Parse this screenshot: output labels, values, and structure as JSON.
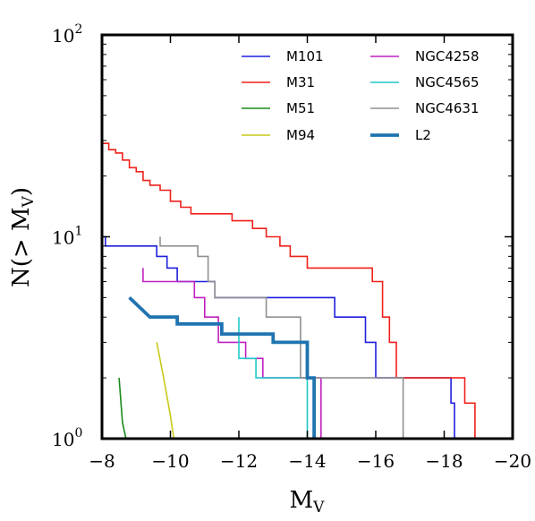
{
  "chart_data": {
    "type": "line",
    "title": "",
    "xlabel": "M",
    "xlabel_sub": "V",
    "ylabel": "N(> M",
    "ylabel_sub": "V",
    "ylabel_end": ")",
    "xlim": [
      -8,
      -20
    ],
    "ylim": [
      1,
      100
    ],
    "yscale": "log",
    "x_ticks": [
      {
        "value": -8,
        "label": "−8"
      },
      {
        "value": -10,
        "label": "−10"
      },
      {
        "value": -12,
        "label": "−12"
      },
      {
        "value": -14,
        "label": "−14"
      },
      {
        "value": -16,
        "label": "−16"
      },
      {
        "value": -18,
        "label": "−18"
      },
      {
        "value": -20,
        "label": "−20"
      }
    ],
    "y_ticks": [
      {
        "value": 1,
        "base": "10",
        "exp": "0"
      },
      {
        "value": 10,
        "base": "10",
        "exp": "1"
      },
      {
        "value": 100,
        "base": "10",
        "exp": "2"
      }
    ],
    "grid": false,
    "legend_position": "top-right",
    "series": [
      {
        "name": "M101",
        "color": "#1f1fdd",
        "width": 1.6,
        "points": [
          [
            -8,
            10
          ],
          [
            -8.1,
            10
          ],
          [
            -8.1,
            9
          ],
          [
            -9.6,
            9
          ],
          [
            -9.6,
            8
          ],
          [
            -9.9,
            8
          ],
          [
            -9.9,
            7
          ],
          [
            -10.2,
            7
          ],
          [
            -10.2,
            6
          ],
          [
            -11.3,
            6
          ],
          [
            -11.3,
            5
          ],
          [
            -14.8,
            5
          ],
          [
            -14.8,
            4
          ],
          [
            -15.7,
            4
          ],
          [
            -15.7,
            3
          ],
          [
            -16.0,
            3
          ],
          [
            -16.0,
            2
          ],
          [
            -18.2,
            2
          ],
          [
            -18.2,
            1.5
          ],
          [
            -18.3,
            1.5
          ],
          [
            -18.3,
            1
          ]
        ]
      },
      {
        "name": "M31",
        "color": "#f0201a",
        "width": 1.6,
        "points": [
          [
            -8,
            29
          ],
          [
            -8.2,
            29
          ],
          [
            -8.2,
            27
          ],
          [
            -8.4,
            27
          ],
          [
            -8.4,
            26
          ],
          [
            -8.6,
            26
          ],
          [
            -8.6,
            24
          ],
          [
            -8.8,
            24
          ],
          [
            -8.8,
            22
          ],
          [
            -9.0,
            22
          ],
          [
            -9.0,
            21
          ],
          [
            -9.2,
            21
          ],
          [
            -9.2,
            19
          ],
          [
            -9.4,
            19
          ],
          [
            -9.4,
            18
          ],
          [
            -9.7,
            18
          ],
          [
            -9.7,
            17
          ],
          [
            -10.0,
            17
          ],
          [
            -10.0,
            15
          ],
          [
            -10.3,
            15
          ],
          [
            -10.3,
            14
          ],
          [
            -10.6,
            14
          ],
          [
            -10.6,
            13
          ],
          [
            -11.8,
            13
          ],
          [
            -11.8,
            12
          ],
          [
            -12.4,
            12
          ],
          [
            -12.4,
            11
          ],
          [
            -12.8,
            11
          ],
          [
            -12.8,
            10
          ],
          [
            -13.2,
            10
          ],
          [
            -13.2,
            9
          ],
          [
            -13.5,
            9
          ],
          [
            -13.5,
            8
          ],
          [
            -14.0,
            8
          ],
          [
            -14.0,
            7
          ],
          [
            -15.9,
            7
          ],
          [
            -15.9,
            6
          ],
          [
            -16.2,
            6
          ],
          [
            -16.2,
            4
          ],
          [
            -16.4,
            4
          ],
          [
            -16.4,
            3
          ],
          [
            -16.6,
            3
          ],
          [
            -16.6,
            2
          ],
          [
            -18.6,
            2
          ],
          [
            -18.6,
            1.5
          ],
          [
            -18.9,
            1.5
          ],
          [
            -18.9,
            1
          ]
        ]
      },
      {
        "name": "M51",
        "color": "#1a8a1a",
        "width": 1.6,
        "points": [
          [
            -8.5,
            2
          ],
          [
            -8.6,
            1.2
          ],
          [
            -8.7,
            1
          ]
        ]
      },
      {
        "name": "M94",
        "color": "#c8c81a",
        "width": 1.6,
        "points": [
          [
            -9.6,
            3
          ],
          [
            -9.8,
            2
          ],
          [
            -10.0,
            1.3
          ],
          [
            -10.1,
            1
          ]
        ]
      },
      {
        "name": "NGC4258",
        "color": "#c020c0",
        "width": 1.6,
        "points": [
          [
            -9.2,
            7
          ],
          [
            -9.2,
            6
          ],
          [
            -10.7,
            6
          ],
          [
            -10.7,
            5
          ],
          [
            -11.0,
            5
          ],
          [
            -11.0,
            4
          ],
          [
            -11.4,
            4
          ],
          [
            -11.4,
            3
          ],
          [
            -12.2,
            3
          ],
          [
            -12.2,
            2.5
          ],
          [
            -12.7,
            2.5
          ],
          [
            -12.7,
            2
          ],
          [
            -14.4,
            2
          ],
          [
            -14.4,
            1
          ]
        ]
      },
      {
        "name": "NGC4565",
        "color": "#20c8c8",
        "width": 1.6,
        "points": [
          [
            -12.0,
            4
          ],
          [
            -12.0,
            2.5
          ],
          [
            -12.5,
            2.5
          ],
          [
            -12.5,
            2
          ],
          [
            -14.0,
            2
          ],
          [
            -14.0,
            1
          ]
        ]
      },
      {
        "name": "NGC4631",
        "color": "#909090",
        "width": 1.6,
        "points": [
          [
            -9.7,
            10
          ],
          [
            -9.7,
            9
          ],
          [
            -10.8,
            9
          ],
          [
            -10.8,
            8
          ],
          [
            -11.1,
            8
          ],
          [
            -11.1,
            6
          ],
          [
            -11.3,
            6
          ],
          [
            -11.3,
            5
          ],
          [
            -12.8,
            5
          ],
          [
            -12.8,
            4
          ],
          [
            -13.8,
            4
          ],
          [
            -13.8,
            2
          ],
          [
            -16.8,
            2
          ],
          [
            -16.8,
            1
          ]
        ]
      },
      {
        "name": "L2",
        "color": "#1f74b0",
        "width": 3.8,
        "points": [
          [
            -8.8,
            5
          ],
          [
            -9.4,
            4
          ],
          [
            -10.2,
            4
          ],
          [
            -10.2,
            3.7
          ],
          [
            -11.5,
            3.7
          ],
          [
            -11.5,
            3.3
          ],
          [
            -13.0,
            3.3
          ],
          [
            -13.0,
            3
          ],
          [
            -14.0,
            3
          ],
          [
            -14.0,
            2
          ],
          [
            -14.2,
            2
          ],
          [
            -14.2,
            1
          ]
        ]
      }
    ]
  }
}
